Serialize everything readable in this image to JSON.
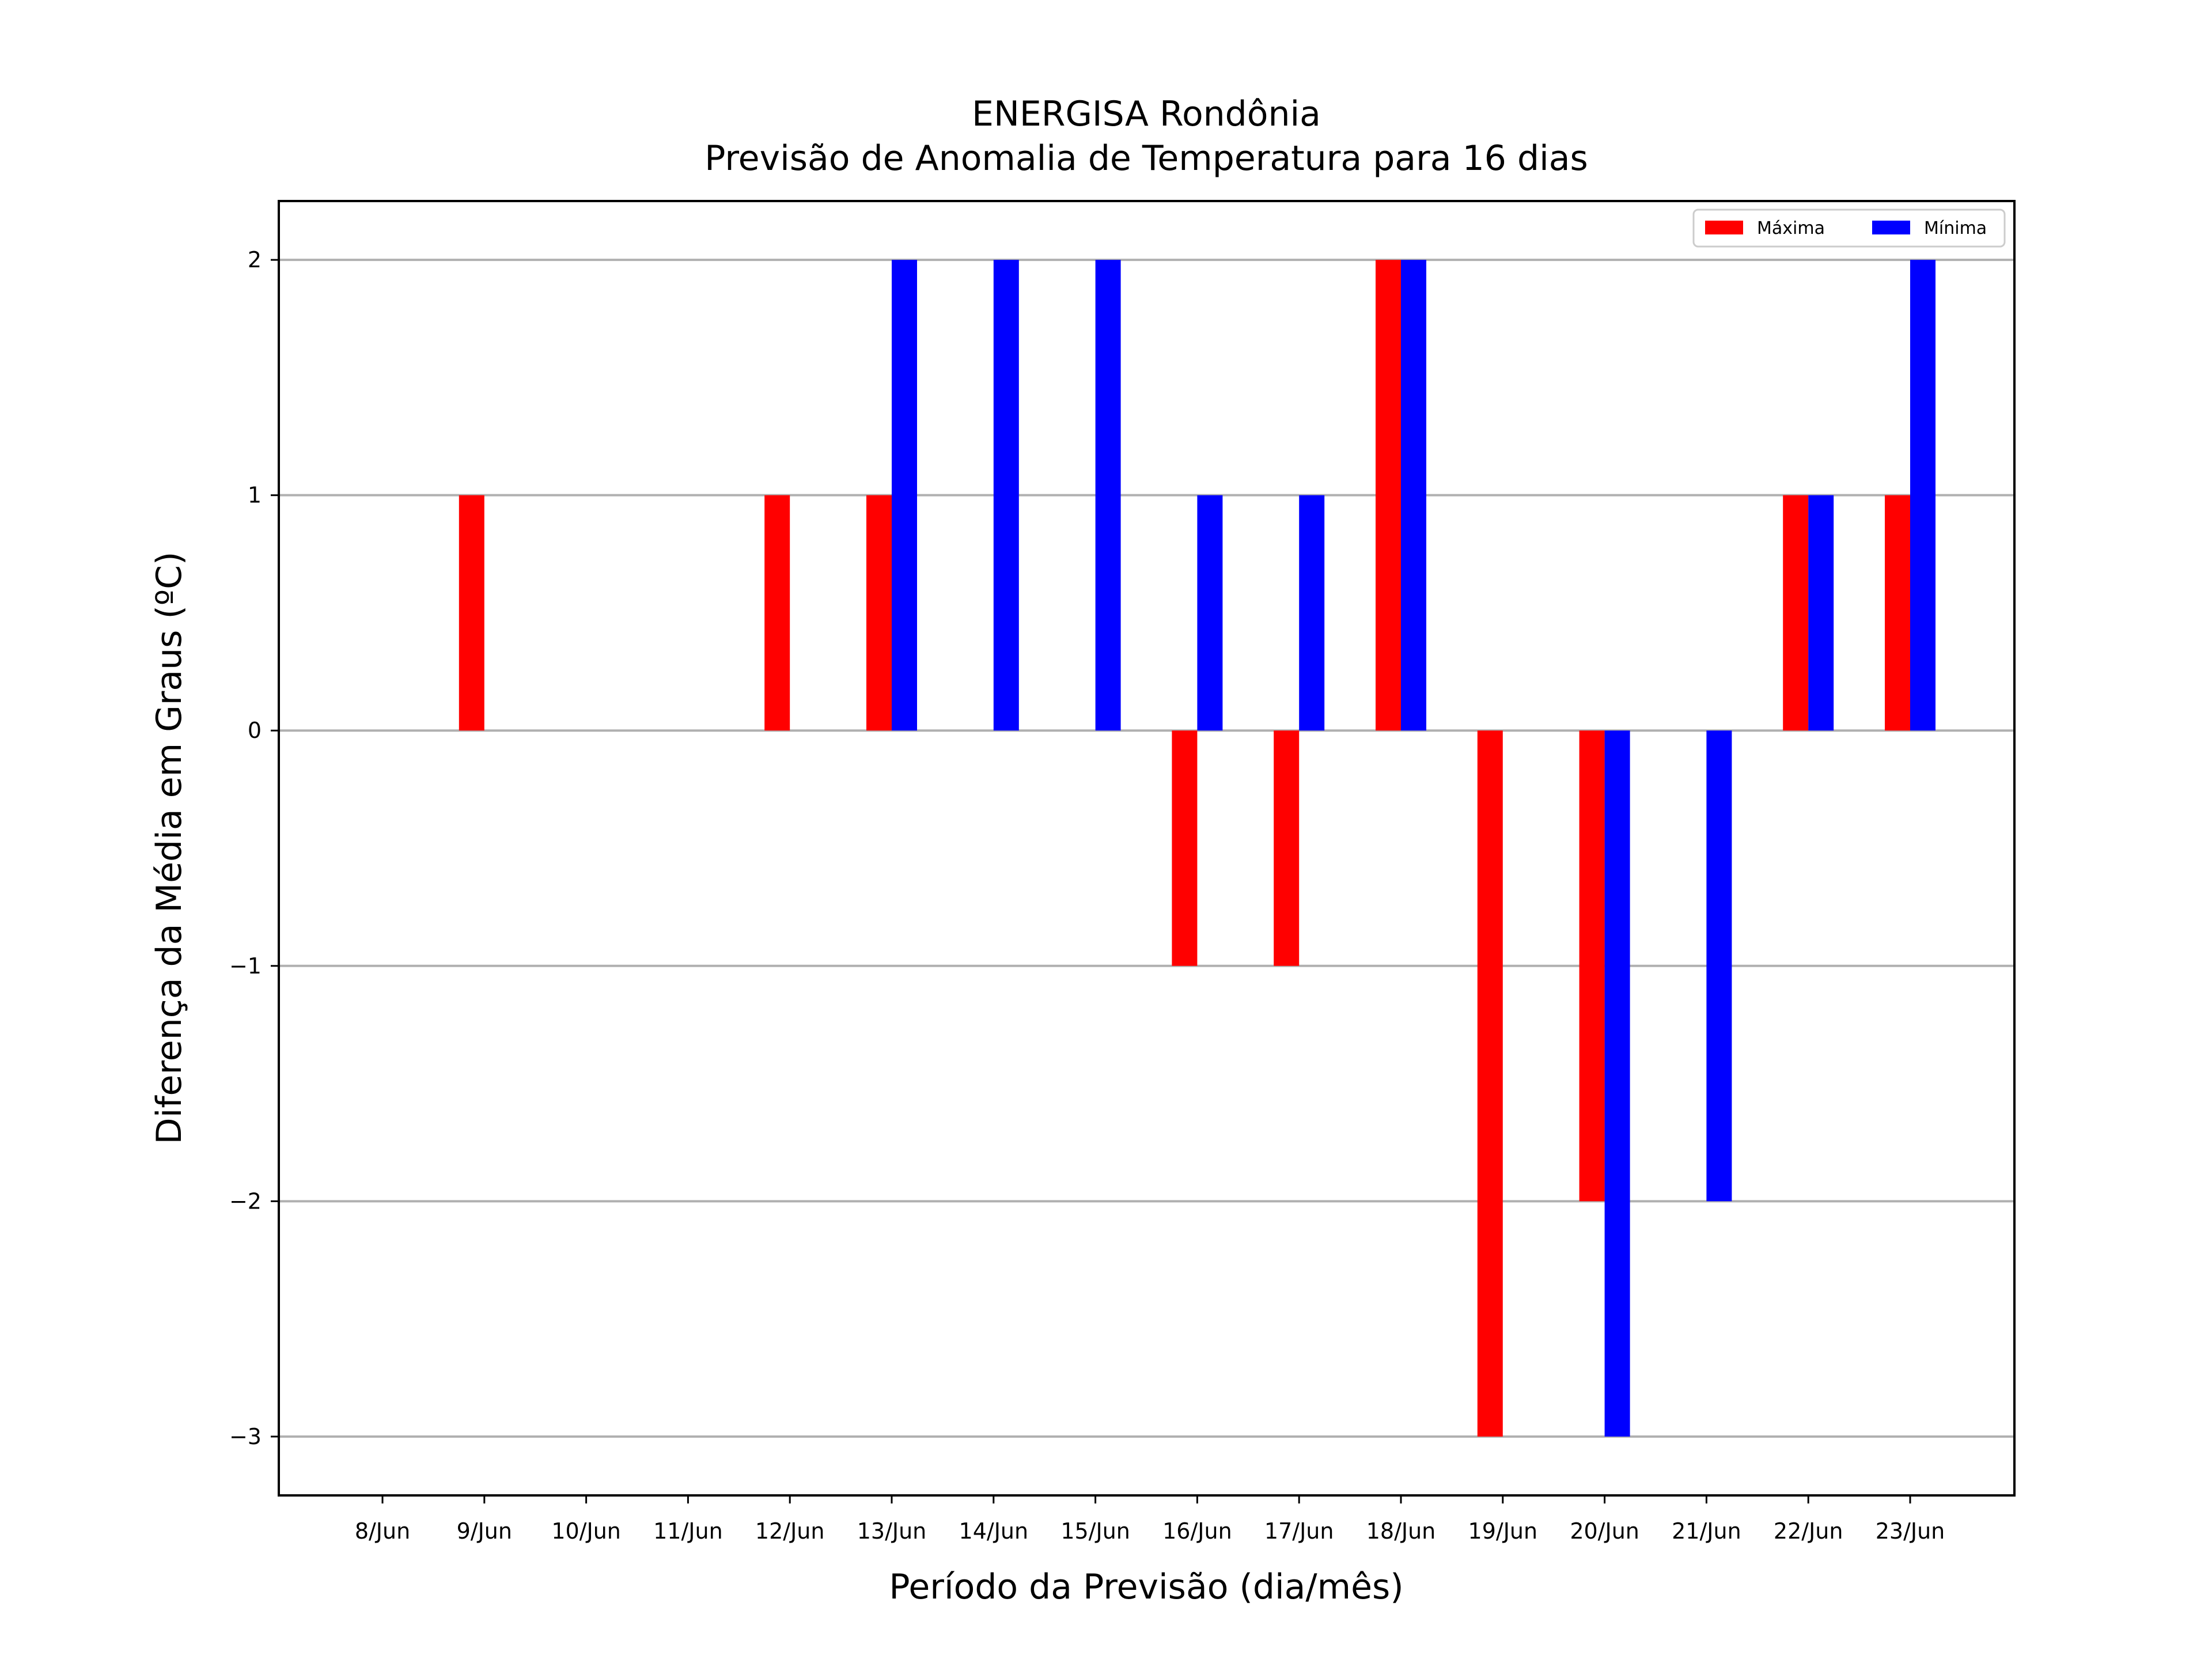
{
  "chart_data": {
    "type": "bar",
    "title": "ENERGISA Rondônia",
    "subtitle": "Previsão de Anomalia de Temperatura para 16 dias",
    "xlabel": "Período da Previsão (dia/mês)",
    "ylabel": "Diferença da Média em Graus (ºC)",
    "categories": [
      "8/Jun",
      "9/Jun",
      "10/Jun",
      "11/Jun",
      "12/Jun",
      "13/Jun",
      "14/Jun",
      "15/Jun",
      "16/Jun",
      "17/Jun",
      "18/Jun",
      "19/Jun",
      "20/Jun",
      "21/Jun",
      "22/Jun",
      "23/Jun"
    ],
    "series": [
      {
        "name": "Máxima",
        "color": "#ff0000",
        "values": [
          0,
          1,
          0,
          0,
          1,
          1,
          0,
          0,
          -1,
          -1,
          2,
          -3,
          -2,
          0,
          1,
          1
        ]
      },
      {
        "name": "Mínima",
        "color": "#0000ff",
        "values": [
          0,
          0,
          0,
          0,
          0,
          2,
          2,
          2,
          1,
          1,
          2,
          0,
          -3,
          -2,
          1,
          2
        ]
      }
    ],
    "ylim": [
      -3.25,
      2.25
    ],
    "yticks": [
      2,
      1,
      0,
      -1,
      -2,
      -3
    ],
    "ytick_labels": [
      "2",
      "1",
      "0",
      "−1",
      "−2",
      "−3"
    ],
    "grid": "horizontal",
    "legend_position": "top-right"
  }
}
